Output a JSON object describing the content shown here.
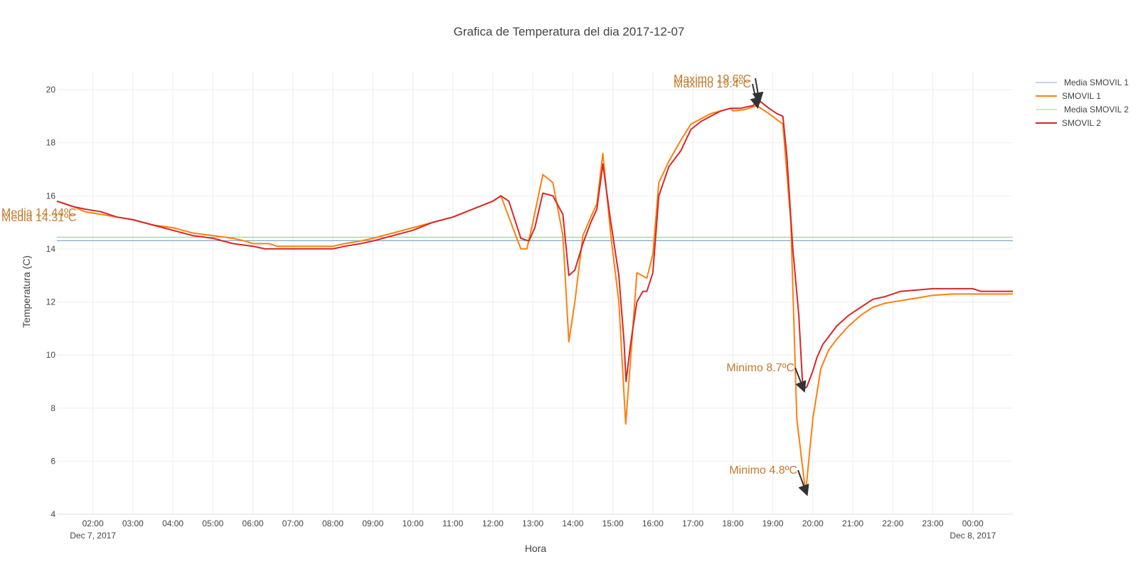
{
  "chart_data": {
    "type": "line",
    "title": "Grafica de Temperatura del dia 2017-12-07",
    "xlabel": "Hora",
    "ylabel": "Temperatura (C)",
    "x_range_hours": [
      1.1,
      25.0
    ],
    "ylim": [
      4,
      20.7
    ],
    "grid": true,
    "legend_placement": "top-right",
    "y_ticks": [
      4,
      6,
      8,
      10,
      12,
      14,
      16,
      18,
      20
    ],
    "x_ticks": [
      {
        "hour": 2,
        "label": "02:00",
        "sublabel": "Dec 7, 2017"
      },
      {
        "hour": 3,
        "label": "03:00"
      },
      {
        "hour": 4,
        "label": "04:00"
      },
      {
        "hour": 5,
        "label": "05:00"
      },
      {
        "hour": 6,
        "label": "06:00"
      },
      {
        "hour": 7,
        "label": "07:00"
      },
      {
        "hour": 8,
        "label": "08:00"
      },
      {
        "hour": 9,
        "label": "09:00"
      },
      {
        "hour": 10,
        "label": "10:00"
      },
      {
        "hour": 11,
        "label": "11:00"
      },
      {
        "hour": 12,
        "label": "12:00"
      },
      {
        "hour": 13,
        "label": "13:00"
      },
      {
        "hour": 14,
        "label": "14:00"
      },
      {
        "hour": 15,
        "label": "15:00"
      },
      {
        "hour": 16,
        "label": "16:00"
      },
      {
        "hour": 17,
        "label": "17:00"
      },
      {
        "hour": 18,
        "label": "18:00"
      },
      {
        "hour": 19,
        "label": "19:00"
      },
      {
        "hour": 20,
        "label": "20:00"
      },
      {
        "hour": 21,
        "label": "21:00"
      },
      {
        "hour": 22,
        "label": "22:00"
      },
      {
        "hour": 23,
        "label": "23:00"
      },
      {
        "hour": 24,
        "label": "00:00",
        "sublabel": "Dec 8, 2017"
      }
    ],
    "series": [
      {
        "name": "Media SMOVIL 1",
        "kind": "mean",
        "color": "#86a8c8",
        "value": 14.31
      },
      {
        "name": "SMOVIL 1",
        "kind": "line",
        "color": "#ff7f0e",
        "points": [
          [
            1.1,
            15.8
          ],
          [
            1.3,
            15.7
          ],
          [
            1.5,
            15.6
          ],
          [
            1.8,
            15.4
          ],
          [
            2.2,
            15.3
          ],
          [
            2.6,
            15.2
          ],
          [
            3.0,
            15.1
          ],
          [
            3.5,
            14.9
          ],
          [
            4.0,
            14.8
          ],
          [
            4.5,
            14.6
          ],
          [
            5.0,
            14.5
          ],
          [
            5.5,
            14.4
          ],
          [
            5.8,
            14.3
          ],
          [
            6.0,
            14.2
          ],
          [
            6.4,
            14.2
          ],
          [
            6.6,
            14.1
          ],
          [
            7.0,
            14.1
          ],
          [
            7.5,
            14.1
          ],
          [
            8.0,
            14.1
          ],
          [
            8.3,
            14.2
          ],
          [
            8.7,
            14.3
          ],
          [
            9.0,
            14.4
          ],
          [
            9.5,
            14.6
          ],
          [
            10.0,
            14.8
          ],
          [
            10.5,
            15.0
          ],
          [
            11.0,
            15.2
          ],
          [
            11.5,
            15.5
          ],
          [
            12.0,
            15.8
          ],
          [
            12.2,
            16.0
          ],
          [
            12.4,
            15.2
          ],
          [
            12.7,
            14.0
          ],
          [
            12.85,
            14.0
          ],
          [
            13.0,
            15.0
          ],
          [
            13.25,
            16.8
          ],
          [
            13.5,
            16.5
          ],
          [
            13.75,
            14.5
          ],
          [
            13.9,
            10.5
          ],
          [
            14.05,
            12.0
          ],
          [
            14.25,
            14.5
          ],
          [
            14.45,
            15.2
          ],
          [
            14.6,
            15.7
          ],
          [
            14.75,
            17.6
          ],
          [
            14.95,
            14.5
          ],
          [
            15.15,
            12.0
          ],
          [
            15.32,
            7.4
          ],
          [
            15.45,
            10.0
          ],
          [
            15.6,
            13.1
          ],
          [
            15.85,
            12.9
          ],
          [
            16.0,
            13.8
          ],
          [
            16.15,
            16.5
          ],
          [
            16.4,
            17.3
          ],
          [
            16.7,
            18.1
          ],
          [
            16.95,
            18.7
          ],
          [
            17.2,
            18.9
          ],
          [
            17.45,
            19.1
          ],
          [
            17.7,
            19.2
          ],
          [
            17.95,
            19.3
          ],
          [
            18.0,
            19.2
          ],
          [
            18.3,
            19.25
          ],
          [
            18.6,
            19.4
          ],
          [
            18.9,
            19.1
          ],
          [
            19.25,
            18.7
          ],
          [
            19.45,
            15.0
          ],
          [
            19.6,
            7.6
          ],
          [
            19.82,
            4.8
          ],
          [
            20.0,
            7.6
          ],
          [
            20.2,
            9.5
          ],
          [
            20.4,
            10.2
          ],
          [
            20.6,
            10.6
          ],
          [
            20.9,
            11.1
          ],
          [
            21.2,
            11.5
          ],
          [
            21.5,
            11.8
          ],
          [
            21.8,
            11.95
          ],
          [
            22.2,
            12.05
          ],
          [
            22.6,
            12.15
          ],
          [
            23.0,
            12.25
          ],
          [
            23.5,
            12.3
          ],
          [
            24.0,
            12.3
          ],
          [
            24.5,
            12.3
          ],
          [
            25.0,
            12.3
          ]
        ]
      },
      {
        "name": "Media SMOVIL 2",
        "kind": "mean",
        "color": "#9bd39b",
        "value": 14.44
      },
      {
        "name": "SMOVIL 2",
        "kind": "line",
        "color": "#d62728",
        "points": [
          [
            1.1,
            15.8
          ],
          [
            1.3,
            15.7
          ],
          [
            1.5,
            15.6
          ],
          [
            1.8,
            15.5
          ],
          [
            2.2,
            15.4
          ],
          [
            2.6,
            15.2
          ],
          [
            3.0,
            15.1
          ],
          [
            3.5,
            14.9
          ],
          [
            4.0,
            14.7
          ],
          [
            4.5,
            14.5
          ],
          [
            5.0,
            14.4
          ],
          [
            5.5,
            14.2
          ],
          [
            6.0,
            14.1
          ],
          [
            6.3,
            14.0
          ],
          [
            6.6,
            14.0
          ],
          [
            7.0,
            14.0
          ],
          [
            7.5,
            14.0
          ],
          [
            8.0,
            14.0
          ],
          [
            8.3,
            14.1
          ],
          [
            8.7,
            14.2
          ],
          [
            9.0,
            14.3
          ],
          [
            9.5,
            14.5
          ],
          [
            10.0,
            14.7
          ],
          [
            10.5,
            15.0
          ],
          [
            11.0,
            15.2
          ],
          [
            11.5,
            15.5
          ],
          [
            12.0,
            15.8
          ],
          [
            12.2,
            16.0
          ],
          [
            12.4,
            15.8
          ],
          [
            12.7,
            14.4
          ],
          [
            12.9,
            14.3
          ],
          [
            13.05,
            14.8
          ],
          [
            13.25,
            16.1
          ],
          [
            13.5,
            16.0
          ],
          [
            13.75,
            15.3
          ],
          [
            13.9,
            13.0
          ],
          [
            14.05,
            13.2
          ],
          [
            14.25,
            14.2
          ],
          [
            14.45,
            15.0
          ],
          [
            14.6,
            15.5
          ],
          [
            14.75,
            17.2
          ],
          [
            14.95,
            15.0
          ],
          [
            15.15,
            13.0
          ],
          [
            15.28,
            10.5
          ],
          [
            15.33,
            9.0
          ],
          [
            15.45,
            10.5
          ],
          [
            15.6,
            12.0
          ],
          [
            15.75,
            12.4
          ],
          [
            15.85,
            12.4
          ],
          [
            16.0,
            13.1
          ],
          [
            16.15,
            16.0
          ],
          [
            16.4,
            17.1
          ],
          [
            16.7,
            17.7
          ],
          [
            16.95,
            18.5
          ],
          [
            17.2,
            18.8
          ],
          [
            17.45,
            19.0
          ],
          [
            17.7,
            19.2
          ],
          [
            17.95,
            19.3
          ],
          [
            18.2,
            19.3
          ],
          [
            18.5,
            19.4
          ],
          [
            18.65,
            19.6
          ],
          [
            18.9,
            19.3
          ],
          [
            19.1,
            19.1
          ],
          [
            19.25,
            19.0
          ],
          [
            19.35,
            17.5
          ],
          [
            19.5,
            14.0
          ],
          [
            19.65,
            11.5
          ],
          [
            19.75,
            8.7
          ],
          [
            19.85,
            8.8
          ],
          [
            20.0,
            9.4
          ],
          [
            20.1,
            9.9
          ],
          [
            20.25,
            10.4
          ],
          [
            20.4,
            10.7
          ],
          [
            20.6,
            11.1
          ],
          [
            20.9,
            11.5
          ],
          [
            21.2,
            11.8
          ],
          [
            21.5,
            12.1
          ],
          [
            21.8,
            12.2
          ],
          [
            22.2,
            12.4
          ],
          [
            22.6,
            12.45
          ],
          [
            23.0,
            12.5
          ],
          [
            23.5,
            12.5
          ],
          [
            24.0,
            12.5
          ],
          [
            24.2,
            12.4
          ],
          [
            24.6,
            12.4
          ],
          [
            25.0,
            12.4
          ]
        ]
      }
    ],
    "annotations": [
      {
        "text": "Media 14.44ºC",
        "x": 1.1,
        "y": 14.44,
        "arrow": false
      },
      {
        "text": "Media 14.31ºC",
        "x": 1.1,
        "y": 14.31,
        "arrow": false
      },
      {
        "text": "Maximo 19.6ºC",
        "x": 18.65,
        "y": 19.6,
        "arrow": true
      },
      {
        "text": "Maximo 19.4ºC",
        "x": 18.6,
        "y": 19.4,
        "arrow": true
      },
      {
        "text": "Minimo 8.7ºC",
        "x": 19.75,
        "y": 8.7,
        "arrow": true
      },
      {
        "text": "Minimo 4.8ºC",
        "x": 19.82,
        "y": 4.8,
        "arrow": true
      }
    ]
  }
}
